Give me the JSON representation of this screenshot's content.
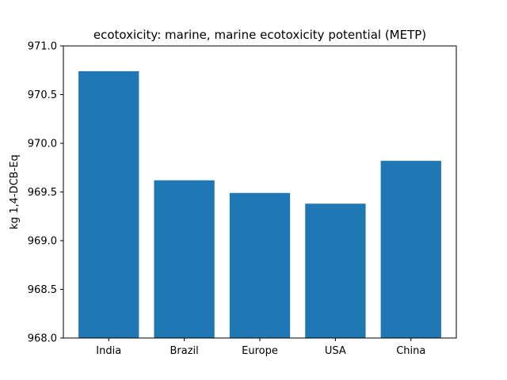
{
  "chart_data": {
    "type": "bar",
    "title": "ecotoxicity: marine, marine ecotoxicity potential (METP)",
    "xlabel": "",
    "ylabel": "kg 1,4-DCB-Eq",
    "categories": [
      "India",
      "Brazil",
      "Europe",
      "USA",
      "China"
    ],
    "values": [
      970.74,
      969.62,
      969.49,
      969.38,
      969.82
    ],
    "ylim": [
      968.0,
      971.0
    ],
    "yticks": [
      "968.0",
      "968.5",
      "969.0",
      "969.5",
      "970.0",
      "970.5",
      "971.0"
    ],
    "grid": false,
    "bar_color": "#1f77b4"
  }
}
